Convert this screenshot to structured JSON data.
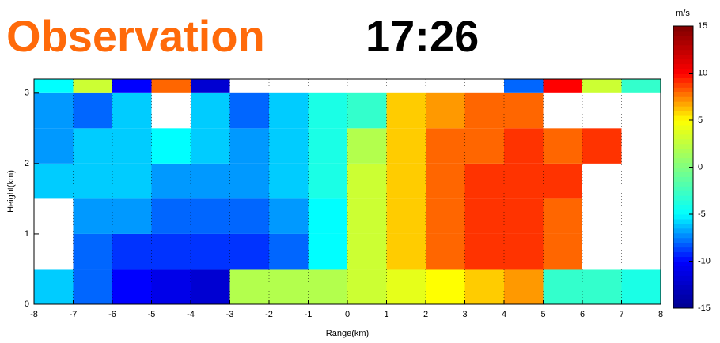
{
  "chart_data": {
    "type": "heatmap",
    "title": "Observation",
    "title_color": "#ff6a0a",
    "time_label": "17:26",
    "xlabel": "Range(km)",
    "ylabel": "Height(km)",
    "xlim": [
      -8,
      8
    ],
    "ylim": [
      0,
      3.2
    ],
    "xticks": [
      -8,
      -7,
      -6,
      -5,
      -4,
      -3,
      -2,
      -1,
      0,
      1,
      2,
      3,
      4,
      5,
      6,
      7,
      8
    ],
    "yticks": [
      0,
      1,
      2,
      3
    ],
    "xbins": [
      -8,
      -7,
      -6,
      -5,
      -4,
      -3,
      -2,
      -1,
      0,
      1,
      2,
      3,
      4,
      5,
      6,
      7,
      8
    ],
    "ybins": [
      0,
      0.5,
      1,
      1.5,
      2,
      2.5,
      3,
      3.2
    ],
    "z": [
      [
        -6,
        -8,
        -10,
        -11,
        -12,
        2,
        2,
        2,
        3,
        4,
        5,
        6,
        7,
        -3,
        -3,
        -4
      ],
      [
        null,
        -8,
        -9,
        -9,
        -9,
        -9,
        -8,
        -5,
        3,
        6,
        8,
        9,
        9,
        8,
        null,
        null
      ],
      [
        null,
        -7,
        -7,
        -8,
        -8,
        -8,
        -7,
        -5,
        3,
        6,
        8,
        9,
        9,
        8,
        null,
        null
      ],
      [
        -6,
        -6,
        -6,
        -7,
        -7,
        -7,
        -6,
        -4,
        3,
        6,
        8,
        9,
        9,
        9,
        null,
        null
      ],
      [
        -7,
        -6,
        -6,
        -5,
        -6,
        -7,
        -6,
        -4,
        2,
        6,
        8,
        8,
        9,
        8,
        9,
        null
      ],
      [
        -7,
        -8,
        -6,
        null,
        -6,
        -8,
        -6,
        -4,
        -3,
        6,
        7,
        8,
        8,
        null,
        null,
        null
      ],
      [
        -5,
        3,
        -10,
        8,
        -12,
        null,
        null,
        null,
        null,
        null,
        null,
        null,
        -8,
        10,
        3,
        -3
      ]
    ],
    "colorbar": {
      "label": "m/s",
      "lim": [
        -15,
        15
      ],
      "ticks": [
        15,
        10,
        5,
        0,
        -5,
        -10,
        -15
      ],
      "colormap": [
        "#00008f",
        "#0000ff",
        "#00ffff",
        "#80ff80",
        "#ffff00",
        "#ff0000",
        "#800000"
      ]
    }
  }
}
